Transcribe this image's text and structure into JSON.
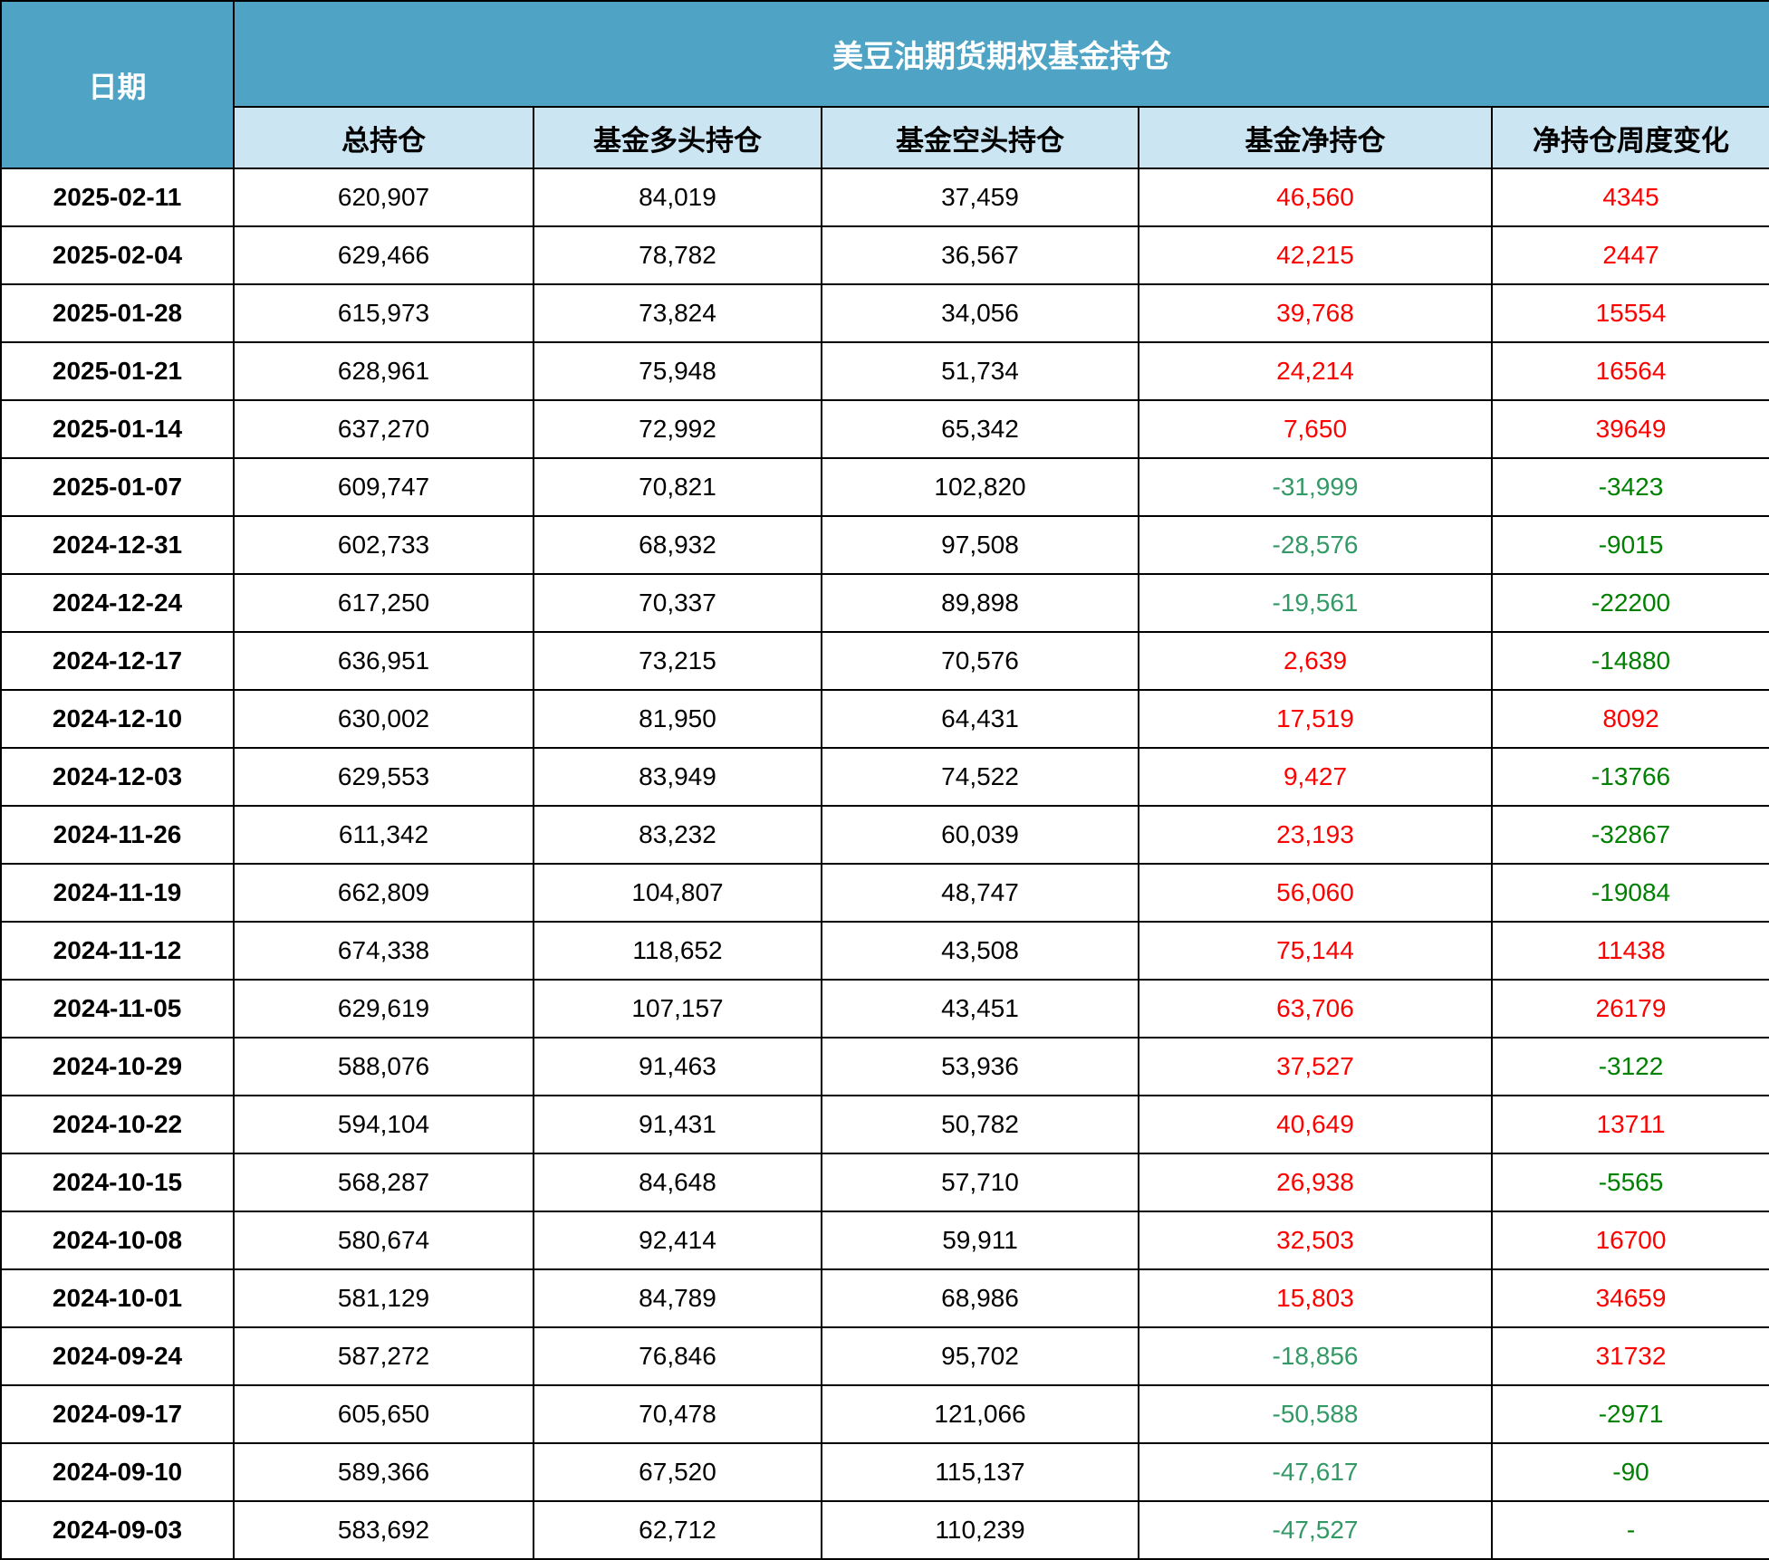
{
  "title": "美豆油期货期权基金持仓",
  "date_header": "日期",
  "columns": [
    "总持仓",
    "基金多头持仓",
    "基金空头持仓",
    "基金净持仓",
    "净持仓周度变化"
  ],
  "colors": {
    "header_bg": "#4FA4C5",
    "subheader_bg": "#CBE5F2",
    "positive": "#FF0000",
    "net_negative": "#339966",
    "change_negative": "#008000",
    "border": "#000000",
    "header_text": "#FFFFFF",
    "body_text": "#000000"
  },
  "chart_data": {
    "type": "table",
    "title": "美豆油期货期权基金持仓",
    "columns": [
      "日期",
      "总持仓",
      "基金多头持仓",
      "基金空头持仓",
      "基金净持仓",
      "净持仓周度变化"
    ],
    "rows": [
      {
        "date": "2025-02-11",
        "total": "620,907",
        "long": "84,019",
        "short": "37,459",
        "net": "46,560",
        "change": "4345"
      },
      {
        "date": "2025-02-04",
        "total": "629,466",
        "long": "78,782",
        "short": "36,567",
        "net": "42,215",
        "change": "2447"
      },
      {
        "date": "2025-01-28",
        "total": "615,973",
        "long": "73,824",
        "short": "34,056",
        "net": "39,768",
        "change": "15554"
      },
      {
        "date": "2025-01-21",
        "total": "628,961",
        "long": "75,948",
        "short": "51,734",
        "net": "24,214",
        "change": "16564"
      },
      {
        "date": "2025-01-14",
        "total": "637,270",
        "long": "72,992",
        "short": "65,342",
        "net": "7,650",
        "change": "39649"
      },
      {
        "date": "2025-01-07",
        "total": "609,747",
        "long": "70,821",
        "short": "102,820",
        "net": "-31,999",
        "change": "-3423"
      },
      {
        "date": "2024-12-31",
        "total": "602,733",
        "long": "68,932",
        "short": "97,508",
        "net": "-28,576",
        "change": "-9015"
      },
      {
        "date": "2024-12-24",
        "total": "617,250",
        "long": "70,337",
        "short": "89,898",
        "net": "-19,561",
        "change": "-22200"
      },
      {
        "date": "2024-12-17",
        "total": "636,951",
        "long": "73,215",
        "short": "70,576",
        "net": "2,639",
        "change": "-14880"
      },
      {
        "date": "2024-12-10",
        "total": "630,002",
        "long": "81,950",
        "short": "64,431",
        "net": "17,519",
        "change": "8092"
      },
      {
        "date": "2024-12-03",
        "total": "629,553",
        "long": "83,949",
        "short": "74,522",
        "net": "9,427",
        "change": "-13766"
      },
      {
        "date": "2024-11-26",
        "total": "611,342",
        "long": "83,232",
        "short": "60,039",
        "net": "23,193",
        "change": "-32867"
      },
      {
        "date": "2024-11-19",
        "total": "662,809",
        "long": "104,807",
        "short": "48,747",
        "net": "56,060",
        "change": "-19084"
      },
      {
        "date": "2024-11-12",
        "total": "674,338",
        "long": "118,652",
        "short": "43,508",
        "net": "75,144",
        "change": "11438"
      },
      {
        "date": "2024-11-05",
        "total": "629,619",
        "long": "107,157",
        "short": "43,451",
        "net": "63,706",
        "change": "26179"
      },
      {
        "date": "2024-10-29",
        "total": "588,076",
        "long": "91,463",
        "short": "53,936",
        "net": "37,527",
        "change": "-3122"
      },
      {
        "date": "2024-10-22",
        "total": "594,104",
        "long": "91,431",
        "short": "50,782",
        "net": "40,649",
        "change": "13711"
      },
      {
        "date": "2024-10-15",
        "total": "568,287",
        "long": "84,648",
        "short": "57,710",
        "net": "26,938",
        "change": "-5565"
      },
      {
        "date": "2024-10-08",
        "total": "580,674",
        "long": "92,414",
        "short": "59,911",
        "net": "32,503",
        "change": "16700"
      },
      {
        "date": "2024-10-01",
        "total": "581,129",
        "long": "84,789",
        "short": "68,986",
        "net": "15,803",
        "change": "34659"
      },
      {
        "date": "2024-09-24",
        "total": "587,272",
        "long": "76,846",
        "short": "95,702",
        "net": "-18,856",
        "change": "31732"
      },
      {
        "date": "2024-09-17",
        "total": "605,650",
        "long": "70,478",
        "short": "121,066",
        "net": "-50,588",
        "change": "-2971"
      },
      {
        "date": "2024-09-10",
        "total": "589,366",
        "long": "67,520",
        "short": "115,137",
        "net": "-47,617",
        "change": "-90"
      },
      {
        "date": "2024-09-03",
        "total": "583,692",
        "long": "62,712",
        "short": "110,239",
        "net": "-47,527",
        "change": "-"
      }
    ]
  }
}
